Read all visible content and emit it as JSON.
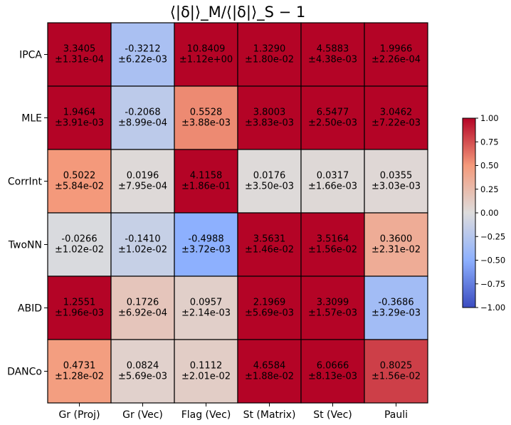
{
  "chart_data": {
    "type": "heatmap",
    "title": "⟨|δ|⟩_M/⟨|δ|⟩_S − 1",
    "xlabel": "",
    "ylabel": "",
    "columns": [
      "Gr (Proj)",
      "Gr (Vec)",
      "Flag (Vec)",
      "St (Matrix)",
      "St (Vec)",
      "Pauli"
    ],
    "rows": [
      "IPCA",
      "MLE",
      "CorrInt",
      "TwoNN",
      "ABID",
      "DANCo"
    ],
    "values": [
      [
        3.3405,
        -0.3212,
        10.8409,
        1.329,
        4.5883,
        1.9966
      ],
      [
        1.9464,
        -0.2068,
        0.5528,
        3.8003,
        6.5477,
        3.0462
      ],
      [
        0.5022,
        0.0196,
        4.1158,
        0.0176,
        0.0317,
        0.0355
      ],
      [
        -0.0266,
        -0.141,
        -0.4988,
        3.5631,
        3.5164,
        0.36
      ],
      [
        1.2551,
        0.1726,
        0.0957,
        2.1969,
        3.3099,
        -0.3686
      ],
      [
        0.4731,
        0.0824,
        0.1112,
        4.6584,
        6.0666,
        0.8025
      ]
    ],
    "value_labels": [
      [
        "3.3405",
        "-0.3212",
        "10.8409",
        "1.3290",
        "4.5883",
        "1.9966"
      ],
      [
        "1.9464",
        "-0.2068",
        "0.5528",
        "3.8003",
        "6.5477",
        "3.0462"
      ],
      [
        "0.5022",
        "0.0196",
        "4.1158",
        "0.0176",
        "0.0317",
        "0.0355"
      ],
      [
        "-0.0266",
        "-0.1410",
        "-0.4988",
        "3.5631",
        "3.5164",
        "0.3600"
      ],
      [
        "1.2551",
        "0.1726",
        "0.0957",
        "2.1969",
        "3.3099",
        "-0.3686"
      ],
      [
        "0.4731",
        "0.0824",
        "0.1112",
        "4.6584",
        "6.0666",
        "0.8025"
      ]
    ],
    "errors": [
      [
        "±1.31e-04",
        "±6.22e-03",
        "±1.12e+00",
        "±1.80e-02",
        "±4.38e-03",
        "±2.26e-04"
      ],
      [
        "±3.91e-03",
        "±8.99e-04",
        "±3.88e-03",
        "±3.83e-03",
        "±2.50e-03",
        "±7.22e-03"
      ],
      [
        "±5.84e-02",
        "±7.95e-04",
        "±1.86e-01",
        "±3.50e-03",
        "±1.66e-03",
        "±3.03e-03"
      ],
      [
        "±1.02e-02",
        "±1.02e-02",
        "±3.72e-03",
        "±1.46e-02",
        "±1.56e-02",
        "±2.31e-02"
      ],
      [
        "±1.96e-03",
        "±6.92e-04",
        "±2.14e-03",
        "±5.69e-03",
        "±1.57e-03",
        "±3.29e-03"
      ],
      [
        "±1.28e-02",
        "±5.69e-03",
        "±2.01e-02",
        "±1.88e-02",
        "±8.13e-03",
        "±1.56e-02"
      ]
    ],
    "colormap": "coolwarm",
    "clim": [
      -1.0,
      1.0
    ],
    "colorbar_ticks": [
      "1.00",
      "0.75",
      "0.50",
      "0.25",
      "0.00",
      "−0.25",
      "−0.50",
      "−0.75",
      "−1.00"
    ],
    "colorbar_position": "right",
    "grid": false
  }
}
